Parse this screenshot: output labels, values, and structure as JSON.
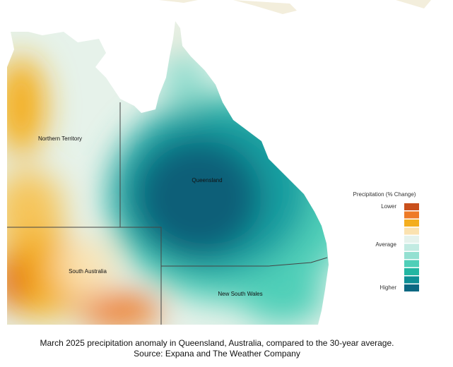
{
  "map": {
    "regions": [
      "Northern Territory",
      "Queensland",
      "South Australia",
      "New South Wales"
    ]
  },
  "legend": {
    "title": "Precipitation  (% Change)",
    "labels": [
      "Lower",
      "Average",
      "Higher"
    ],
    "colors": [
      "#c9501c",
      "#ee7a26",
      "#f4ae1f",
      "#fbe2b0",
      "#e5f2ec",
      "#c2ebe2",
      "#93e0d1",
      "#4fcfb8",
      "#22b6a2",
      "#0e8f95",
      "#0b6882"
    ]
  },
  "caption": [
    "March 2025 precipitation anomaly in Queensland, Australia, compared to the 30-year average.",
    "Source: Expana and The Weather Company"
  ]
}
